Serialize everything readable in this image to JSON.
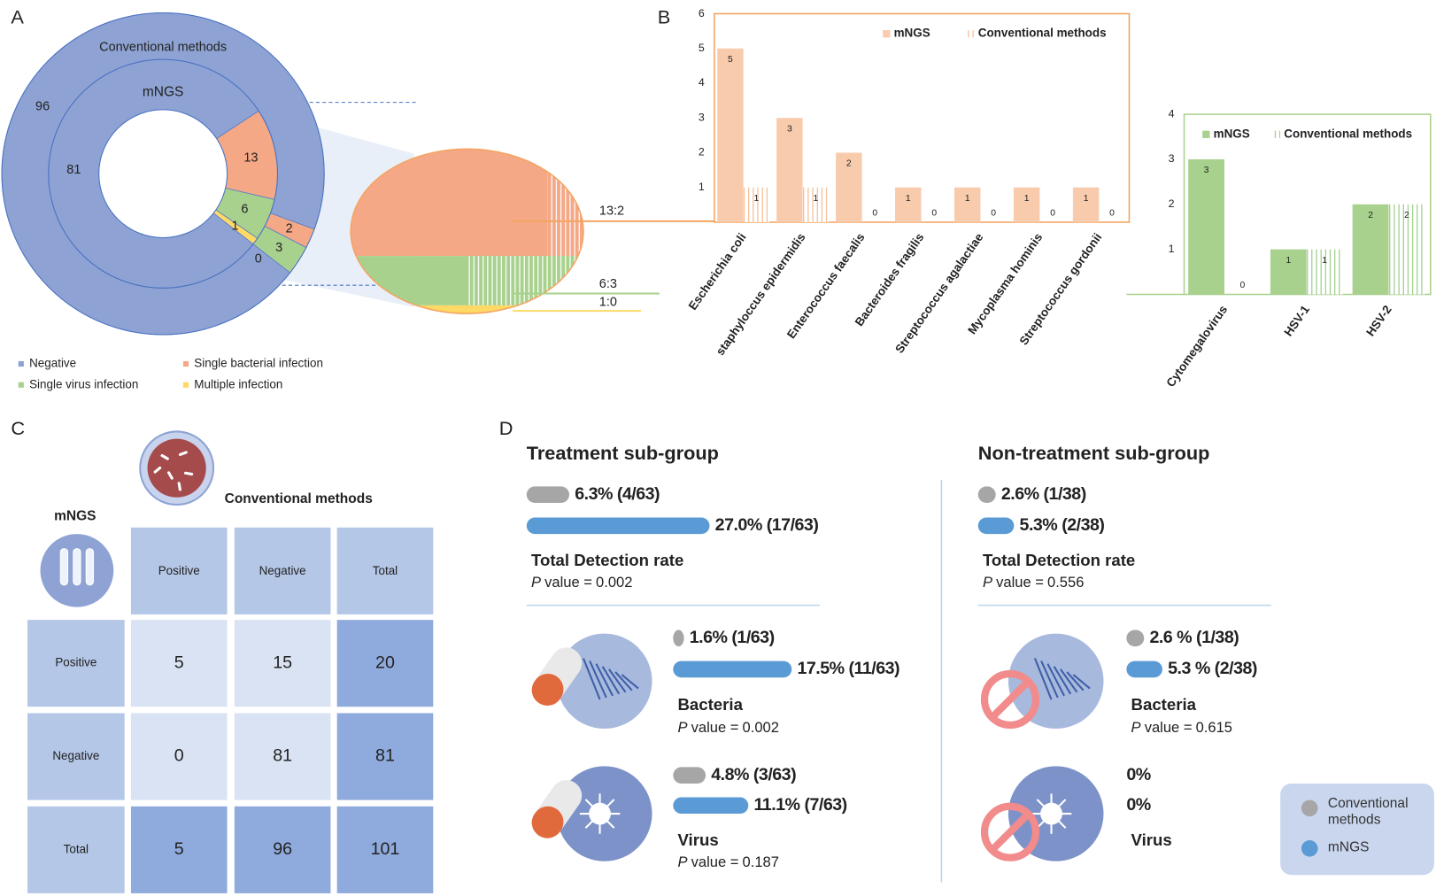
{
  "panel_labels": [
    "A",
    "B",
    "C",
    "D"
  ],
  "chart_data": [
    {
      "type": "donut",
      "categories": [
        "Negative",
        "Single bacterial infection",
        "Single virus infection",
        "Multiple infection"
      ],
      "colors": [
        "#8ea3d3",
        "#f4a886",
        "#a9d18e",
        "#ffd966"
      ],
      "series": [
        {
          "name": "Conventional methods",
          "values": [
            96,
            2,
            3,
            0
          ]
        },
        {
          "name": "mNGS",
          "values": [
            81,
            13,
            6,
            1
          ]
        }
      ],
      "annotations": [
        "13:2",
        "6:3",
        "1:0"
      ],
      "legend": "bottom"
    },
    {
      "type": "bar",
      "categories": [
        "Escherichia coli",
        "staphyloccus epidermidis",
        "Enterococcus faecalis",
        "Bacteroides fragilis",
        "Streptococcus agalactiae",
        "Mycoplasma hominis",
        "Streptococcus gordonii"
      ],
      "series": [
        {
          "name": "mNGS",
          "color": "#f8cbad",
          "values": [
            5,
            3,
            2,
            1,
            1,
            1,
            1
          ]
        },
        {
          "name": "Conventional methods",
          "color": "#f4b183",
          "hatch": true,
          "values": [
            1,
            1,
            0,
            0,
            0,
            0,
            0
          ]
        }
      ],
      "ylim": [
        0,
        6
      ],
      "yticks": [
        1,
        2,
        3,
        4,
        5,
        6
      ],
      "frame_color": "#f4a460"
    },
    {
      "type": "bar",
      "categories": [
        "Cytomegalovirus",
        "HSV-1",
        "HSV-2"
      ],
      "series": [
        {
          "name": "mNGS",
          "color": "#a9d18e",
          "values": [
            3,
            1,
            2
          ]
        },
        {
          "name": "Conventional methods",
          "color": "#8cc474",
          "hatch": true,
          "values": [
            0,
            1,
            2
          ]
        }
      ],
      "ylim": [
        0,
        4
      ],
      "yticks": [
        1,
        2,
        3,
        4
      ],
      "frame_color": "#a9d18e"
    }
  ],
  "table": {
    "row_title": "mNGS",
    "column_title": "Conventional methods",
    "columns": [
      "Positive",
      "Negative",
      "Total"
    ],
    "rows": [
      {
        "label": "Positive",
        "cells": [
          5,
          15,
          20
        ]
      },
      {
        "label": "Negative",
        "cells": [
          0,
          81,
          81
        ]
      },
      {
        "label": "Total",
        "cells": [
          5,
          96,
          101
        ]
      }
    ]
  },
  "comparison": {
    "p_symbol": "P",
    "p_text": "value =",
    "legend": [
      {
        "name": "Conventional methods",
        "color": "#a6a6a6"
      },
      {
        "name": "mNGS",
        "color": "#5b9bd5"
      }
    ],
    "groups": [
      {
        "title": "Treatment sub-group",
        "rows": [
          {
            "name": "Total Detection rate",
            "conventional": {
              "value": 6.3,
              "label": "6.3% (4/63)"
            },
            "mngs": {
              "value": 27.0,
              "label": "27.0% (17/63)"
            },
            "p": 0.002
          },
          {
            "name": "Bacteria",
            "conventional": {
              "value": 1.6,
              "label": "1.6% (1/63)"
            },
            "mngs": {
              "value": 17.5,
              "label": "17.5% (11/63)"
            },
            "p": 0.002
          },
          {
            "name": "Virus",
            "conventional": {
              "value": 4.8,
              "label": "4.8% (3/63)"
            },
            "mngs": {
              "value": 11.1,
              "label": "11.1% (7/63)"
            },
            "p": 0.187
          }
        ]
      },
      {
        "title": "Non-treatment sub-group",
        "rows": [
          {
            "name": "Total Detection rate",
            "conventional": {
              "value": 2.6,
              "label": "2.6% (1/38)"
            },
            "mngs": {
              "value": 5.3,
              "label": "5.3% (2/38)"
            },
            "p": 0.556
          },
          {
            "name": "Bacteria",
            "conventional": {
              "value": 2.6,
              "label": "2.6 % (1/38)"
            },
            "mngs": {
              "value": 5.3,
              "label": "5.3 % (2/38)"
            },
            "p": 0.615
          },
          {
            "name": "Virus",
            "conventional": {
              "value": 0,
              "label": "0%"
            },
            "mngs": {
              "value": 0,
              "label": "0%"
            }
          }
        ]
      }
    ]
  }
}
